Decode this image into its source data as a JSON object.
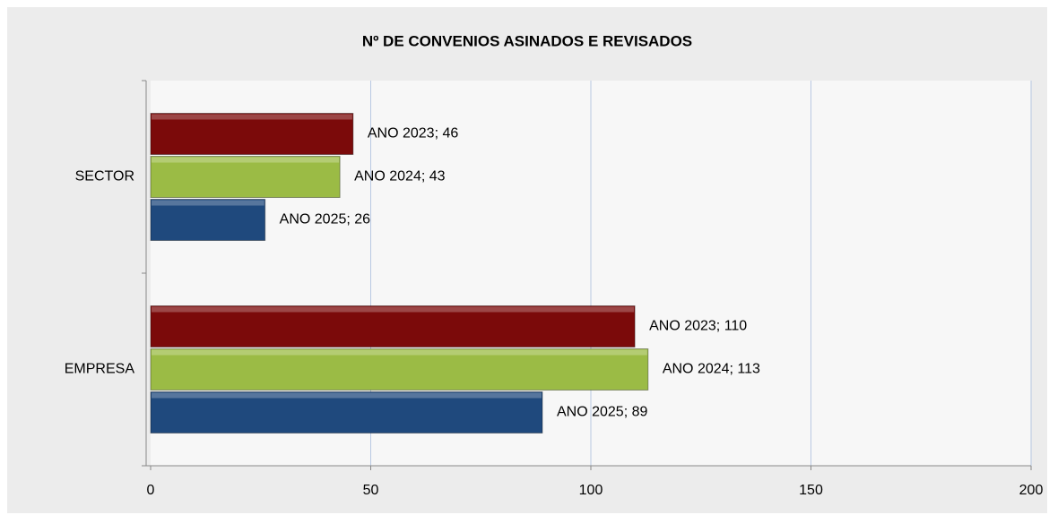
{
  "chart_data": {
    "type": "bar",
    "orientation": "horizontal",
    "title": "Nº DE CONVENIOS ASINADOS E REVISADOS",
    "categories": [
      "EMPRESA",
      "SECTOR"
    ],
    "series": [
      {
        "color": "#7b0a0a",
        "values": [
          110,
          46
        ],
        "value_labels": [
          "ANO 2023; 110",
          "ANO 2023; 46"
        ]
      },
      {
        "color": "#9bbb45",
        "values": [
          113,
          43
        ],
        "value_labels": [
          "ANO 2024; 113",
          "ANO 2024; 43"
        ]
      },
      {
        "color": "#1f497d",
        "values": [
          89,
          26
        ],
        "value_labels": [
          "ANO 2025; 89",
          "ANO 2025; 26"
        ]
      }
    ],
    "xlim": [
      0,
      200
    ],
    "xticks": [
      0,
      50,
      100,
      150,
      200
    ],
    "grid": true
  }
}
